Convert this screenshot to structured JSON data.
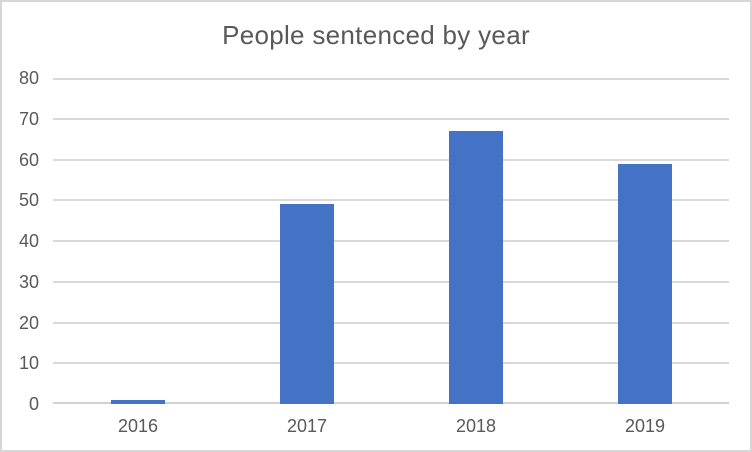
{
  "chart_data": {
    "type": "bar",
    "title": "People sentenced by year",
    "categories": [
      "2016",
      "2017",
      "2018",
      "2019"
    ],
    "values": [
      1,
      49,
      67,
      59
    ],
    "xlabel": "",
    "ylabel": "",
    "ylim": [
      0,
      80
    ],
    "yticks": [
      0,
      10,
      20,
      30,
      40,
      50,
      60,
      70,
      80
    ],
    "grid": "horizontal",
    "legend": "none",
    "colors": {
      "bar": "#4472C4",
      "gridline": "#D9D9D9",
      "axis_line": "#D2D2D2",
      "text": "#595959",
      "border": "#D7D7D7",
      "background": "#FFFFFF"
    }
  }
}
